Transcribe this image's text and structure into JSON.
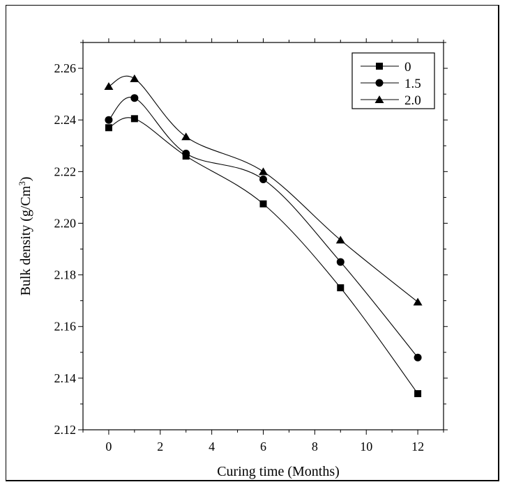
{
  "chart_data": {
    "type": "line",
    "title": "",
    "xlabel": "Curing time (Months)",
    "ylabel": {
      "base": "Bulk density (g/Cm",
      "sup": "3",
      "close": ")"
    },
    "xlim": [
      -1,
      13
    ],
    "ylim": [
      2.12,
      2.27
    ],
    "x_ticks": [
      0,
      2,
      4,
      6,
      8,
      10,
      12
    ],
    "x_tick_labels": [
      "0",
      "2",
      "4",
      "6",
      "8",
      "10",
      "12"
    ],
    "y_ticks": [
      2.12,
      2.14,
      2.16,
      2.18,
      2.2,
      2.22,
      2.24,
      2.26
    ],
    "y_tick_labels": [
      "2.12",
      "2.14",
      "2.16",
      "2.18",
      "2.20",
      "2.22",
      "2.24",
      "2.26"
    ],
    "grid": false,
    "legend_position": "top-right",
    "x": [
      0,
      1,
      3,
      6,
      9,
      12
    ],
    "series": [
      {
        "name": "0",
        "marker": "square",
        "values": [
          2.237,
          2.2405,
          2.226,
          2.2075,
          2.175,
          2.134
        ]
      },
      {
        "name": "1.5",
        "marker": "circle",
        "values": [
          2.24,
          2.2485,
          2.227,
          2.217,
          2.185,
          2.148
        ]
      },
      {
        "name": "2.0",
        "marker": "triangle",
        "values": [
          2.253,
          2.256,
          2.2335,
          2.22,
          2.1935,
          2.1695
        ]
      }
    ],
    "colors": {
      "line": "#000000",
      "marker": "#000000"
    }
  }
}
